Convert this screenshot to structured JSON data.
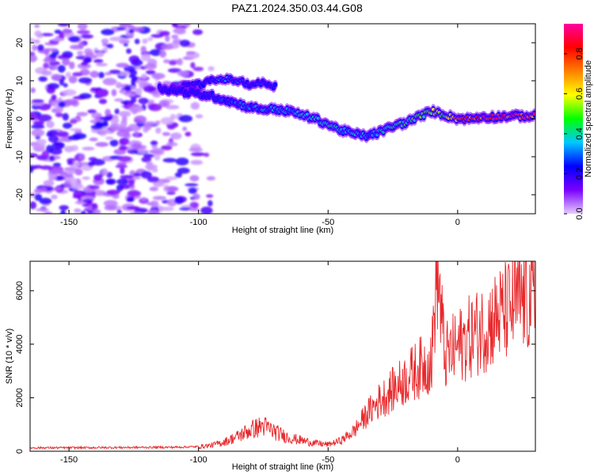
{
  "title": "PAZ1.2024.350.03.44.G08",
  "chart_data": [
    {
      "type": "heatmap",
      "xlabel": "Height of straight line (km)",
      "ylabel": "Frequency (Hz)",
      "xlim": [
        -165,
        30
      ],
      "ylim": [
        -25,
        25
      ],
      "x_ticks": [
        -150,
        -100,
        -50,
        0
      ],
      "y_ticks": [
        -20,
        -10,
        0,
        10,
        20
      ],
      "colorbar": {
        "label": "Normalized spectral amplitude",
        "range": [
          0,
          0.95
        ],
        "ticks": [
          0.0,
          0.2,
          0.4,
          0.6,
          0.8
        ],
        "colors": [
          "#e6ccff",
          "#7a00ff",
          "#0000ff",
          "#00c8ff",
          "#00ff00",
          "#ffff00",
          "#ff8000",
          "#ff0000",
          "#ff00a0"
        ]
      },
      "ridge": {
        "x": [
          -115,
          -105,
          -95,
          -90,
          -85,
          -80,
          -75,
          -70,
          -65,
          -60,
          -55,
          -50,
          -45,
          -40,
          -35,
          -30,
          -25,
          -20,
          -15,
          -10,
          -5,
          0,
          5,
          10,
          15,
          20,
          25,
          30
        ],
        "y": [
          8,
          7,
          6,
          5,
          4,
          3,
          2.5,
          2.5,
          2,
          1,
          0,
          -1.5,
          -3,
          -4,
          -4.5,
          -3.5,
          -2,
          -1,
          0.5,
          2,
          1,
          0,
          0,
          0.5,
          0.5,
          0.7,
          0.7,
          0.7
        ],
        "amplitude": [
          0.22,
          0.25,
          0.28,
          0.3,
          0.32,
          0.33,
          0.35,
          0.36,
          0.38,
          0.4,
          0.42,
          0.44,
          0.4,
          0.38,
          0.35,
          0.4,
          0.45,
          0.5,
          0.55,
          0.6,
          0.55,
          0.8,
          0.85,
          0.9,
          0.92,
          0.92,
          0.92,
          0.9
        ]
      },
      "upper_branch": {
        "x": [
          -110,
          -100,
          -95,
          -90,
          -85,
          -80,
          -75,
          -70
        ],
        "y": [
          8,
          9,
          10,
          10.5,
          10,
          9,
          9.5,
          8.5
        ],
        "amplitude": [
          0.2,
          0.25,
          0.3,
          0.35,
          0.32,
          0.28,
          0.3,
          0.25
        ]
      }
    },
    {
      "type": "line",
      "xlabel": "Height of straight line (km)",
      "ylabel": "SNR (10 * v/v)",
      "xlim": [
        -165,
        30
      ],
      "ylim": [
        0,
        7100
      ],
      "x_ticks": [
        -150,
        -100,
        -50,
        0
      ],
      "y_ticks": [
        0,
        2000,
        4000,
        6000
      ],
      "series": [
        {
          "color": "#e8282b",
          "x": [
            -165,
            -150,
            -130,
            -110,
            -100,
            -95,
            -90,
            -85,
            -80,
            -75,
            -70,
            -65,
            -60,
            -55,
            -50,
            -45,
            -40,
            -35,
            -30,
            -25,
            -20,
            -15,
            -10,
            -8,
            -5,
            0,
            5,
            10,
            15,
            20,
            25,
            30
          ],
          "y": [
            130,
            130,
            140,
            150,
            170,
            220,
            350,
            550,
            800,
            950,
            700,
            500,
            400,
            300,
            250,
            400,
            750,
            1400,
            1900,
            2300,
            2700,
            3100,
            3400,
            7100,
            3500,
            3900,
            4300,
            4600,
            5000,
            5300,
            5700,
            5600
          ]
        }
      ]
    }
  ]
}
